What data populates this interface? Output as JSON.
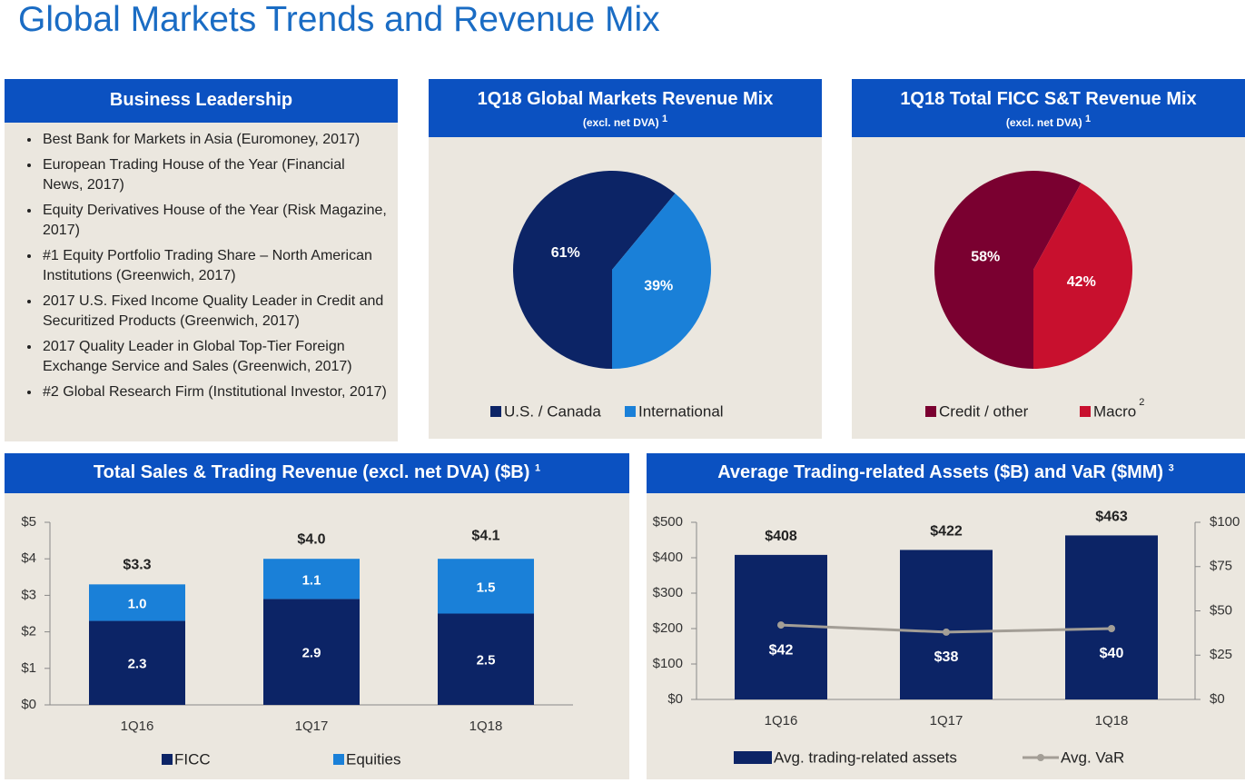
{
  "title": "Global Markets Trends and Revenue Mix",
  "leadership": {
    "title": "Business Leadership",
    "items": [
      "Best Bank for Markets in Asia (Euromoney, 2017)",
      "European Trading House of the Year (Financial News, 2017)",
      "Equity Derivatives House of the Year (Risk Magazine, 2017)",
      "#1 Equity Portfolio Trading Share – North American Institutions (Greenwich, 2017)",
      "2017 U.S. Fixed Income Quality Leader in Credit and Securitized Products (Greenwich, 2017)",
      "2017 Quality Leader in Global Top-Tier Foreign Exchange Service and Sales (Greenwich, 2017)",
      "#2 Global Research Firm (Institutional Investor, 2017)"
    ]
  },
  "chart_data": [
    {
      "type": "pie",
      "title": "1Q18 Global Markets Revenue Mix",
      "subtitle": "(excl. net DVA)",
      "title_note": "1",
      "categories": [
        "U.S. / Canada",
        "International"
      ],
      "values": [
        61,
        39
      ],
      "value_labels": [
        "61%",
        "39%"
      ],
      "colors": [
        "#0c2466",
        "#1a80d8"
      ],
      "legend": "bottom"
    },
    {
      "type": "pie",
      "title": "1Q18 Total FICC S&T Revenue Mix",
      "subtitle": "(excl. net DVA)",
      "title_note": "1",
      "categories": [
        "Credit / other",
        "Macro"
      ],
      "category_notes": [
        null,
        "2"
      ],
      "values": [
        58,
        42
      ],
      "value_labels": [
        "58%",
        "42%"
      ],
      "colors": [
        "#7a0030",
        "#c8102e"
      ],
      "legend": "bottom"
    },
    {
      "type": "stacked_bar",
      "title": "Total Sales & Trading Revenue (excl. net DVA) ($B)",
      "title_note": "1",
      "categories": [
        "1Q16",
        "1Q17",
        "1Q18"
      ],
      "series": [
        {
          "name": "FICC",
          "color": "#0c2466",
          "values": [
            2.3,
            2.9,
            2.5
          ]
        },
        {
          "name": "Equities",
          "color": "#1a80d8",
          "values": [
            1.0,
            1.1,
            1.5
          ],
          "value_labels": [
            "1.0",
            "1.1",
            "1.5"
          ]
        }
      ],
      "totals": {
        "values": [
          3.3,
          4.0,
          4.1
        ],
        "value_labels": [
          "$3.3",
          "$4.0",
          "$4.1"
        ]
      },
      "ylim": [
        0,
        5
      ],
      "yticks": [
        {
          "value": 0,
          "label": "$0"
        },
        {
          "value": 1,
          "label": "$1"
        },
        {
          "value": 2,
          "label": "$2"
        },
        {
          "value": 3,
          "label": "$3"
        },
        {
          "value": 4,
          "label": "$4"
        },
        {
          "value": 5,
          "label": "$5"
        }
      ],
      "legend": "bottom"
    },
    {
      "type": "bar_line",
      "title": "Average Trading-related Assets ($B) and VaR ($MM)",
      "title_note": "3",
      "categories": [
        "1Q16",
        "1Q17",
        "1Q18"
      ],
      "series": [
        {
          "name": "Avg. trading-related assets",
          "type": "bar",
          "color": "#0c2466",
          "values": [
            408,
            422,
            463
          ],
          "value_labels": [
            "$408",
            "$422",
            "$463"
          ]
        },
        {
          "name": "Avg. VaR",
          "type": "line",
          "axis": "y2",
          "color": "#a39e96",
          "values": [
            42,
            38,
            40
          ],
          "value_labels": [
            "$42",
            "$38",
            "$40"
          ]
        }
      ],
      "ylim": [
        0,
        500
      ],
      "yticks": [
        {
          "value": 0,
          "label": "$0"
        },
        {
          "value": 100,
          "label": "$100"
        },
        {
          "value": 200,
          "label": "$200"
        },
        {
          "value": 300,
          "label": "$300"
        },
        {
          "value": 400,
          "label": "$400"
        },
        {
          "value": 500,
          "label": "$500"
        }
      ],
      "y2lim": [
        0,
        100
      ],
      "y2ticks": [
        {
          "value": 0,
          "label": "$0"
        },
        {
          "value": 25,
          "label": "$25"
        },
        {
          "value": 50,
          "label": "$50"
        },
        {
          "value": 75,
          "label": "$75"
        },
        {
          "value": 100,
          "label": "$100"
        }
      ],
      "legend": "bottom"
    }
  ]
}
